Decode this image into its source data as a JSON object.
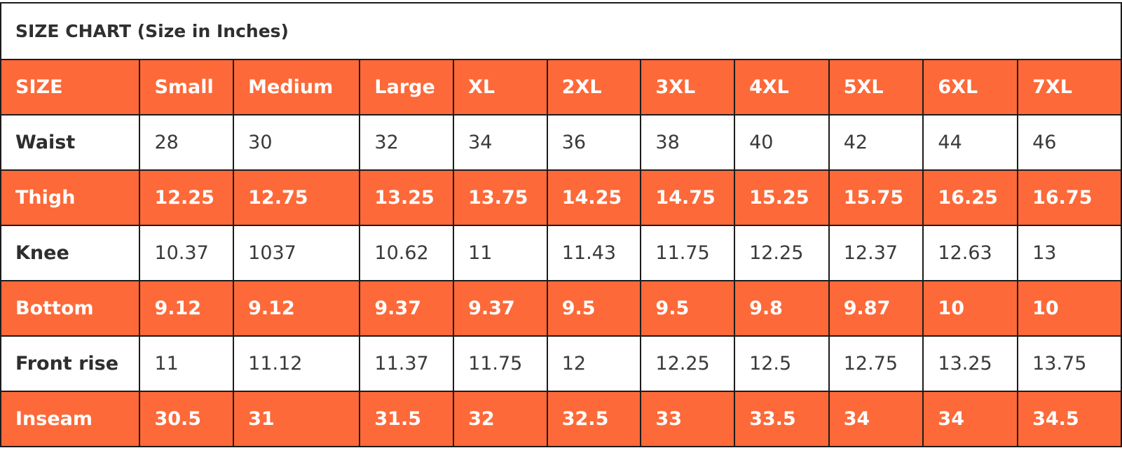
{
  "chart_data": {
    "type": "table",
    "title": "SIZE CHART (Size in Inches)",
    "header": [
      "SIZE",
      "Small",
      "Medium",
      "Large",
      "XL",
      "2XL",
      "3XL",
      "4XL",
      "5XL",
      "6XL",
      "7XL"
    ],
    "rows": [
      {
        "label": "Waist",
        "values": [
          "28",
          "30",
          "32",
          "34",
          "36",
          "38",
          "40",
          "42",
          "44",
          "46"
        ]
      },
      {
        "label": "Thigh",
        "values": [
          "12.25",
          "12.75",
          "13.25",
          "13.75",
          "14.25",
          "14.75",
          "15.25",
          "15.75",
          "16.25",
          "16.75"
        ]
      },
      {
        "label": "Knee",
        "values": [
          "10.37",
          "1037",
          "10.62",
          "11",
          "11.43",
          "11.75",
          "12.25",
          "12.37",
          "12.63",
          "13"
        ]
      },
      {
        "label": "Bottom",
        "values": [
          "9.12",
          "9.12",
          "9.37",
          "9.37",
          "9.5",
          "9.5",
          "9.8",
          "9.87",
          "10",
          "10"
        ]
      },
      {
        "label": "Front rise",
        "values": [
          "11",
          "11.12",
          "11.37",
          "11.75",
          "12",
          "12.25",
          "12.5",
          "12.75",
          "13.25",
          "13.75"
        ]
      },
      {
        "label": "Inseam",
        "values": [
          "30.5",
          "31",
          "31.5",
          "32",
          "32.5",
          "33",
          "33.5",
          "34",
          "34",
          "34.5"
        ]
      }
    ],
    "colors": {
      "band_fill": "#fd6938",
      "band_text": "#ffffff",
      "plain_fill": "#ffffff",
      "plain_text": "#3a3a3a",
      "border": "#1c1c1c"
    }
  }
}
